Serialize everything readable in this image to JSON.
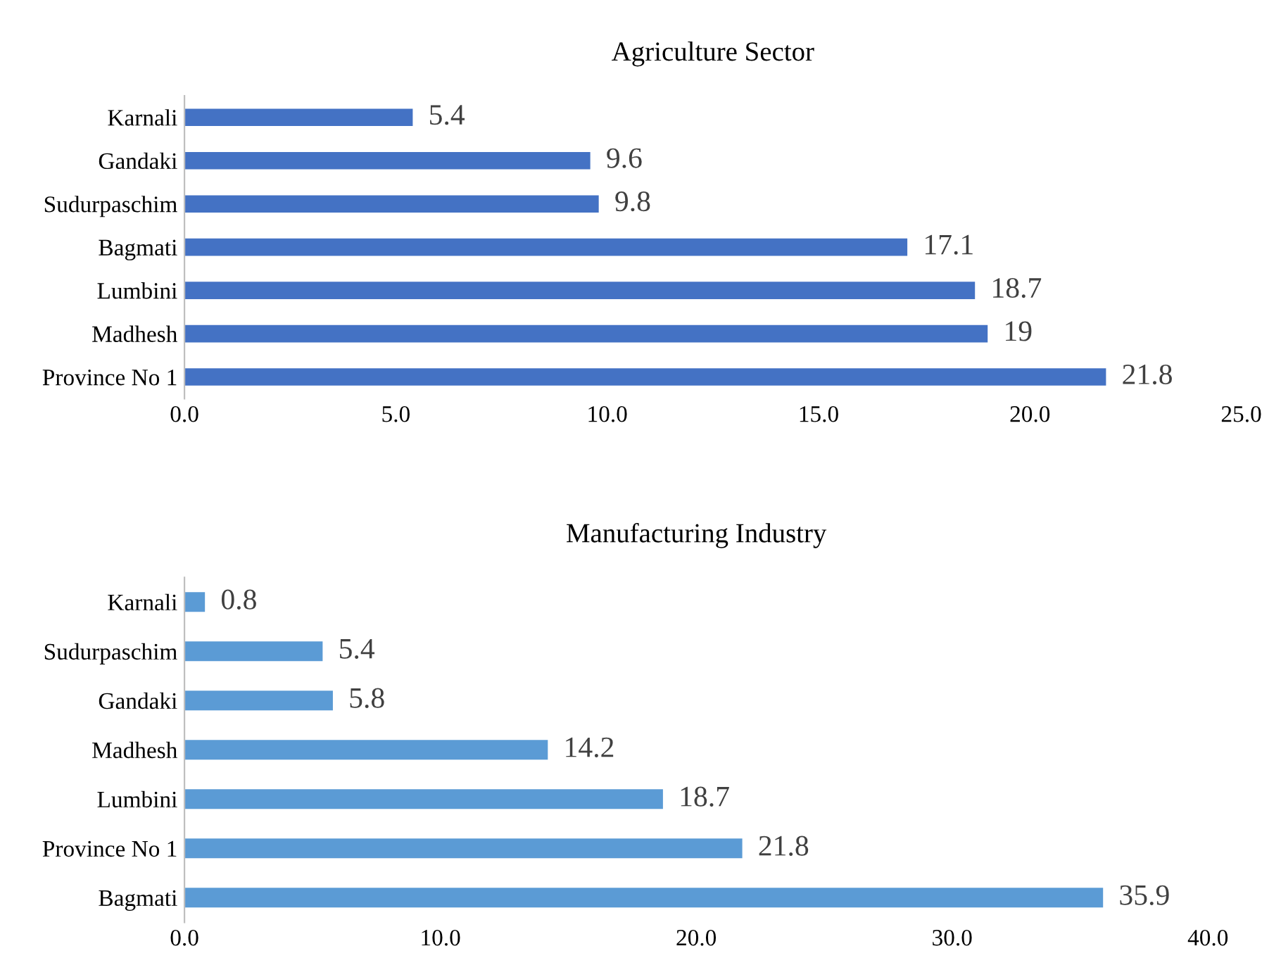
{
  "chart_data": [
    {
      "type": "bar",
      "orientation": "horizontal",
      "title": "Agriculture Sector",
      "categories": [
        "Karnali",
        "Gandaki",
        "Sudurpaschim",
        "Bagmati",
        "Lumbini",
        "Madhesh",
        "Province No 1"
      ],
      "values": [
        5.4,
        9.6,
        9.8,
        17.1,
        18.7,
        19,
        21.8
      ],
      "color": "#4472c4",
      "data_labels": true,
      "xlim": [
        0,
        25
      ],
      "xticks": [
        {
          "value": 0,
          "label": "0.0"
        },
        {
          "value": 5,
          "label": "5.0"
        },
        {
          "value": 10,
          "label": "10.0"
        },
        {
          "value": 15,
          "label": "15.0"
        },
        {
          "value": 20,
          "label": "20.0"
        },
        {
          "value": 25,
          "label": "25.0"
        }
      ],
      "grid": false,
      "legend": false
    },
    {
      "type": "bar",
      "orientation": "horizontal",
      "title": "Manufacturing Industry",
      "categories": [
        "Karnali",
        "Sudurpaschim",
        "Gandaki",
        "Madhesh",
        "Lumbini",
        "Province No 1",
        "Bagmati"
      ],
      "values": [
        0.8,
        5.4,
        5.8,
        14.2,
        18.7,
        21.8,
        35.9
      ],
      "color": "#5b9bd5",
      "data_labels": true,
      "xlim": [
        0,
        40
      ],
      "xticks": [
        {
          "value": 0,
          "label": "0.0"
        },
        {
          "value": 10,
          "label": "10.0"
        },
        {
          "value": 20,
          "label": "20.0"
        },
        {
          "value": 30,
          "label": "30.0"
        },
        {
          "value": 40,
          "label": "40.0"
        }
      ],
      "grid": false,
      "legend": false
    }
  ]
}
